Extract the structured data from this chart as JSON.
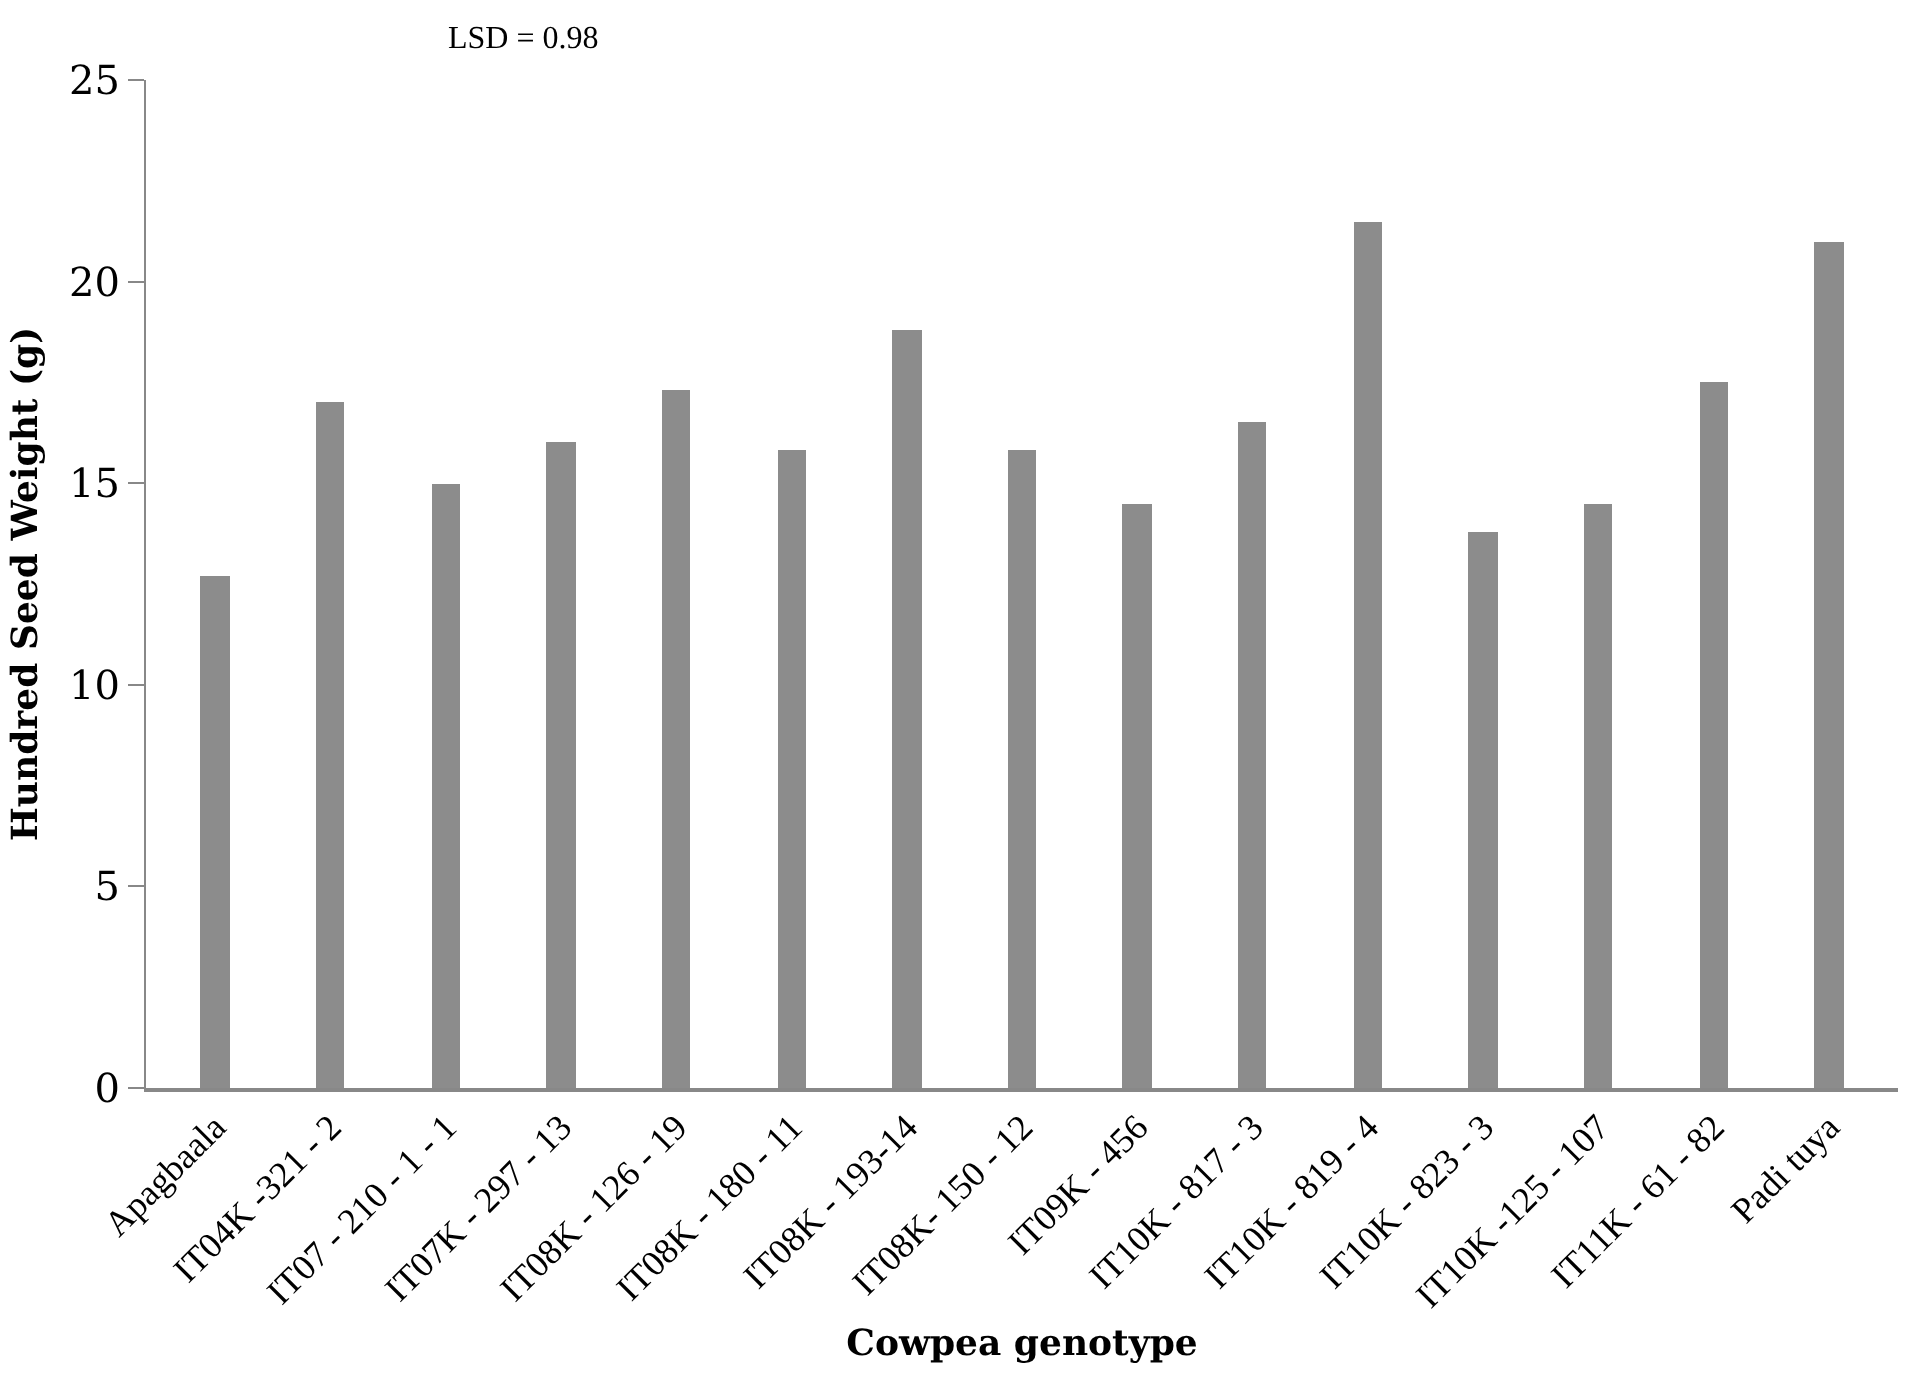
{
  "chart_data": {
    "type": "bar",
    "xlabel": "Cowpea genotype",
    "ylabel": "Hundred Seed Weight (g)",
    "annotations": [
      "LSD = 0.98"
    ],
    "categories": [
      "Apagbaala",
      "IT04K -321 - 2",
      "IT07 - 210 - 1 - 1",
      "IT07K - 297 - 13",
      "IT08K - 126 - 19",
      "IT08K - 180 - 11",
      "IT08K - 193-14",
      "IT08K- 150 - 12",
      "IT09K - 456",
      "IT10K - 817 - 3",
      "IT10K - 819 - 4",
      "IT10K - 823 - 3",
      "IT10K -125 - 107",
      "IT11K - 61 - 82",
      "Padi tuya"
    ],
    "values": [
      12.7,
      17.0,
      15.0,
      16.0,
      17.3,
      15.8,
      18.8,
      15.8,
      14.5,
      16.5,
      21.5,
      13.8,
      14.5,
      17.5,
      21.0
    ],
    "color": "#8c8c8c",
    "ylim": [
      0,
      25
    ],
    "yticks": [
      0,
      5,
      10,
      15,
      20,
      25
    ]
  }
}
